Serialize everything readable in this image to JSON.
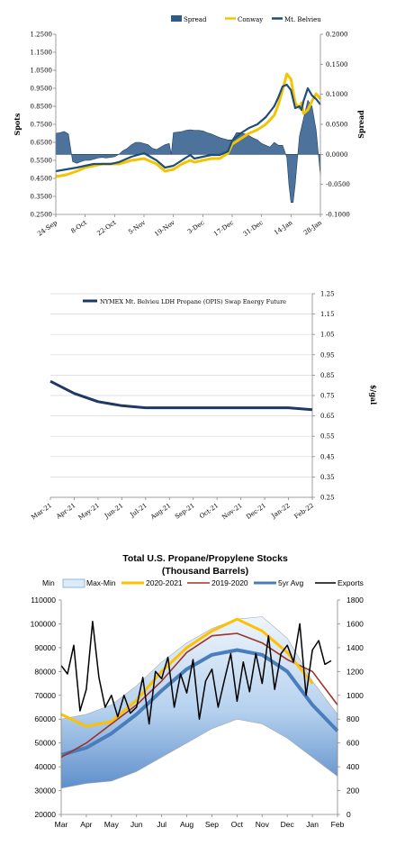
{
  "chart_data": [
    {
      "type": "line",
      "ylabel": "Spots",
      "y2label": "Spread",
      "ylim": [
        0.25,
        1.25
      ],
      "y2lim": [
        -0.1,
        0.2
      ],
      "yticks": [
        "1.2500",
        "1.1500",
        "1.0500",
        "0.9500",
        "0.8500",
        "0.7500",
        "0.6500",
        "0.5500",
        "0.4500",
        "0.3500",
        "0.2500"
      ],
      "y2ticks": [
        "0.2000",
        "0.1500",
        "0.1000",
        "0.0500",
        "0.0000",
        "-0.0500",
        "-0.1000"
      ],
      "xticks": [
        "24-Sep",
        "8-Oct",
        "22-Oct",
        "5-Nov",
        "19-Nov",
        "3-Dec",
        "17-Dec",
        "31-Dec",
        "14-Jan",
        "28-Jan"
      ],
      "x_range": [
        0,
        126
      ],
      "legend_position": "top-right",
      "legend": [
        "Spread",
        "Conway",
        "Mt. Belvieu"
      ],
      "colors": {
        "spread": "#2E5A8C",
        "conway": "#F5C400",
        "belvieu": "#1F4E79"
      },
      "series": [
        {
          "name": "Conway",
          "x": [
            0,
            5,
            10,
            14,
            18,
            22,
            26,
            30,
            36,
            42,
            48,
            52,
            56,
            60,
            64,
            66,
            70,
            74,
            78,
            82,
            84,
            88,
            92,
            96,
            100,
            104,
            106,
            108,
            110,
            112,
            114,
            116,
            117,
            118,
            120,
            122,
            124,
            126
          ],
          "values": [
            0.46,
            0.47,
            0.49,
            0.51,
            0.52,
            0.53,
            0.53,
            0.53,
            0.55,
            0.56,
            0.53,
            0.49,
            0.5,
            0.53,
            0.55,
            0.54,
            0.55,
            0.56,
            0.56,
            0.59,
            0.64,
            0.67,
            0.7,
            0.72,
            0.75,
            0.8,
            0.86,
            0.94,
            1.03,
            1.0,
            0.87,
            0.84,
            0.87,
            0.81,
            0.83,
            0.88,
            0.92,
            0.89
          ]
        },
        {
          "name": "Mt. Belvieu",
          "x": [
            0,
            5,
            10,
            14,
            18,
            22,
            26,
            30,
            36,
            42,
            48,
            52,
            56,
            60,
            64,
            66,
            70,
            74,
            78,
            82,
            84,
            88,
            92,
            96,
            100,
            104,
            106,
            108,
            110,
            112,
            114,
            116,
            117,
            118,
            120,
            122,
            124,
            126
          ],
          "values": [
            0.49,
            0.5,
            0.51,
            0.52,
            0.53,
            0.53,
            0.53,
            0.54,
            0.57,
            0.59,
            0.55,
            0.51,
            0.52,
            0.55,
            0.58,
            0.56,
            0.57,
            0.58,
            0.58,
            0.6,
            0.66,
            0.7,
            0.73,
            0.75,
            0.79,
            0.85,
            0.9,
            0.96,
            0.97,
            0.94,
            0.84,
            0.85,
            0.83,
            0.88,
            0.95,
            0.91,
            0.89,
            0.86
          ]
        },
        {
          "name": "Spread",
          "x": [
            0,
            2,
            4,
            6,
            8,
            10,
            12,
            14,
            16,
            18,
            20,
            22,
            24,
            26,
            28,
            30,
            32,
            34,
            36,
            38,
            40,
            42,
            44,
            46,
            48,
            50,
            52,
            54,
            55,
            56,
            58,
            60,
            62,
            64,
            66,
            68,
            70,
            72,
            74,
            76,
            78,
            80,
            82,
            84,
            86,
            88,
            90,
            92,
            94,
            96,
            98,
            100,
            102,
            104,
            106,
            108,
            110,
            111,
            112,
            113,
            114,
            115,
            116,
            118,
            120,
            122,
            124,
            126
          ],
          "values": [
            0.035,
            0.036,
            0.038,
            0.034,
            -0.012,
            -0.015,
            -0.012,
            -0.01,
            -0.01,
            -0.008,
            -0.006,
            -0.005,
            -0.006,
            -0.005,
            -0.004,
            0.0,
            0.006,
            0.01,
            0.016,
            0.02,
            0.02,
            0.018,
            0.016,
            0.01,
            0.008,
            0.012,
            0.016,
            0.018,
            0.0,
            0.036,
            0.037,
            0.038,
            0.04,
            0.041,
            0.04,
            0.04,
            0.039,
            0.036,
            0.034,
            0.031,
            0.028,
            0.026,
            0.024,
            0.024,
            0.036,
            0.036,
            0.034,
            0.031,
            0.027,
            0.024,
            0.018,
            0.015,
            0.012,
            0.02,
            0.015,
            0.015,
            -0.005,
            -0.05,
            -0.08,
            -0.08,
            -0.05,
            -0.01,
            0.03,
            0.06,
            0.09,
            0.08,
            0.04,
            -0.035
          ]
        }
      ]
    },
    {
      "type": "line",
      "ylabel": "$/gal",
      "ylim": [
        0.25,
        1.25
      ],
      "yticks": [
        "1.25",
        "1.15",
        "1.05",
        "0.95",
        "0.85",
        "0.75",
        "0.65",
        "0.55",
        "0.45",
        "0.35",
        "0.25"
      ],
      "categories": [
        "Mar-21",
        "Apr-21",
        "May-21",
        "Jun-21",
        "Jul-21",
        "Aug-21",
        "Sep-21",
        "Oct-21",
        "Nov-21",
        "Dec-21",
        "Jan-22",
        "Feb-22"
      ],
      "legend_position": "top",
      "colors": {
        "line": "#1F3864"
      },
      "series": [
        {
          "name": "NYMEX Mt. Belvieu LDH Propane (OPIS) Swap Energy Future",
          "values": [
            0.82,
            0.76,
            0.72,
            0.7,
            0.69,
            0.69,
            0.69,
            0.69,
            0.69,
            0.69,
            0.69,
            0.68
          ]
        }
      ]
    },
    {
      "type": "line",
      "title": "Total U.S. Propane/Propylene Stocks",
      "subtitle": "(Thousand Barrels)",
      "ylim": [
        20000,
        110000
      ],
      "y2lim": [
        0,
        1800
      ],
      "yticks": [
        "110000",
        "100000",
        "90000",
        "80000",
        "70000",
        "60000",
        "50000",
        "40000",
        "30000",
        "20000"
      ],
      "y2ticks": [
        "1800",
        "1600",
        "1400",
        "1200",
        "1000",
        "800",
        "600",
        "400",
        "200",
        "0"
      ],
      "categories": [
        "Mar",
        "Apr",
        "May",
        "Jun",
        "Jul",
        "Aug",
        "Sep",
        "Oct",
        "Nov",
        "Dec",
        "Jan",
        "Feb"
      ],
      "legend_position": "top",
      "legend": [
        "Min",
        "Max-Min",
        "2020-2021",
        "2019-2020",
        "5yr Avg",
        "Exports"
      ],
      "colors": {
        "band": "#9DC3E6",
        "y2020": "#FFC000",
        "y2019": "#A0312A",
        "avg": "#4A7EBB",
        "exports": "#000000"
      },
      "band_min": [
        31000,
        33000,
        34000,
        38000,
        44000,
        50000,
        56000,
        60000,
        58000,
        52000,
        44000,
        36000
      ],
      "band_max": [
        60000,
        62000,
        66000,
        74000,
        84000,
        92000,
        98000,
        102000,
        103000,
        94000,
        76000,
        62000
      ],
      "series": [
        {
          "name": "2020-2021",
          "values": [
            62000,
            57000,
            59000,
            68000,
            80000,
            90000,
            97000,
            102000,
            97000,
            88000,
            75000,
            null
          ]
        },
        {
          "name": "2019-2020",
          "values": [
            44000,
            50000,
            58000,
            66000,
            76000,
            88000,
            95000,
            96000,
            92000,
            85000,
            80000,
            66000
          ]
        },
        {
          "name": "5yr Avg",
          "values": [
            45000,
            48000,
            54000,
            62000,
            72000,
            81000,
            87000,
            89000,
            87000,
            80000,
            66000,
            55000
          ]
        },
        {
          "name": "Exports",
          "x": [
            0,
            0.25,
            0.5,
            0.75,
            1,
            1.25,
            1.5,
            1.75,
            2,
            2.25,
            2.5,
            2.75,
            3,
            3.25,
            3.5,
            3.75,
            4,
            4.25,
            4.5,
            4.75,
            5,
            5.25,
            5.5,
            5.75,
            6,
            6.25,
            6.5,
            6.75,
            7,
            7.25,
            7.5,
            7.75,
            8,
            8.25,
            8.5,
            8.75,
            9,
            9.25,
            9.5,
            9.75,
            10,
            10.25,
            10.5,
            10.75
          ],
          "values": [
            1250,
            1180,
            1420,
            870,
            1050,
            1620,
            1150,
            900,
            1000,
            820,
            1000,
            850,
            900,
            1150,
            760,
            1200,
            1140,
            1320,
            900,
            1180,
            1020,
            1300,
            800,
            1120,
            1220,
            900,
            1130,
            1350,
            950,
            1280,
            1030,
            1350,
            1100,
            1500,
            1050,
            1350,
            1420,
            1280,
            1600,
            1000,
            1380,
            1460,
            1260,
            1290
          ]
        }
      ]
    }
  ]
}
